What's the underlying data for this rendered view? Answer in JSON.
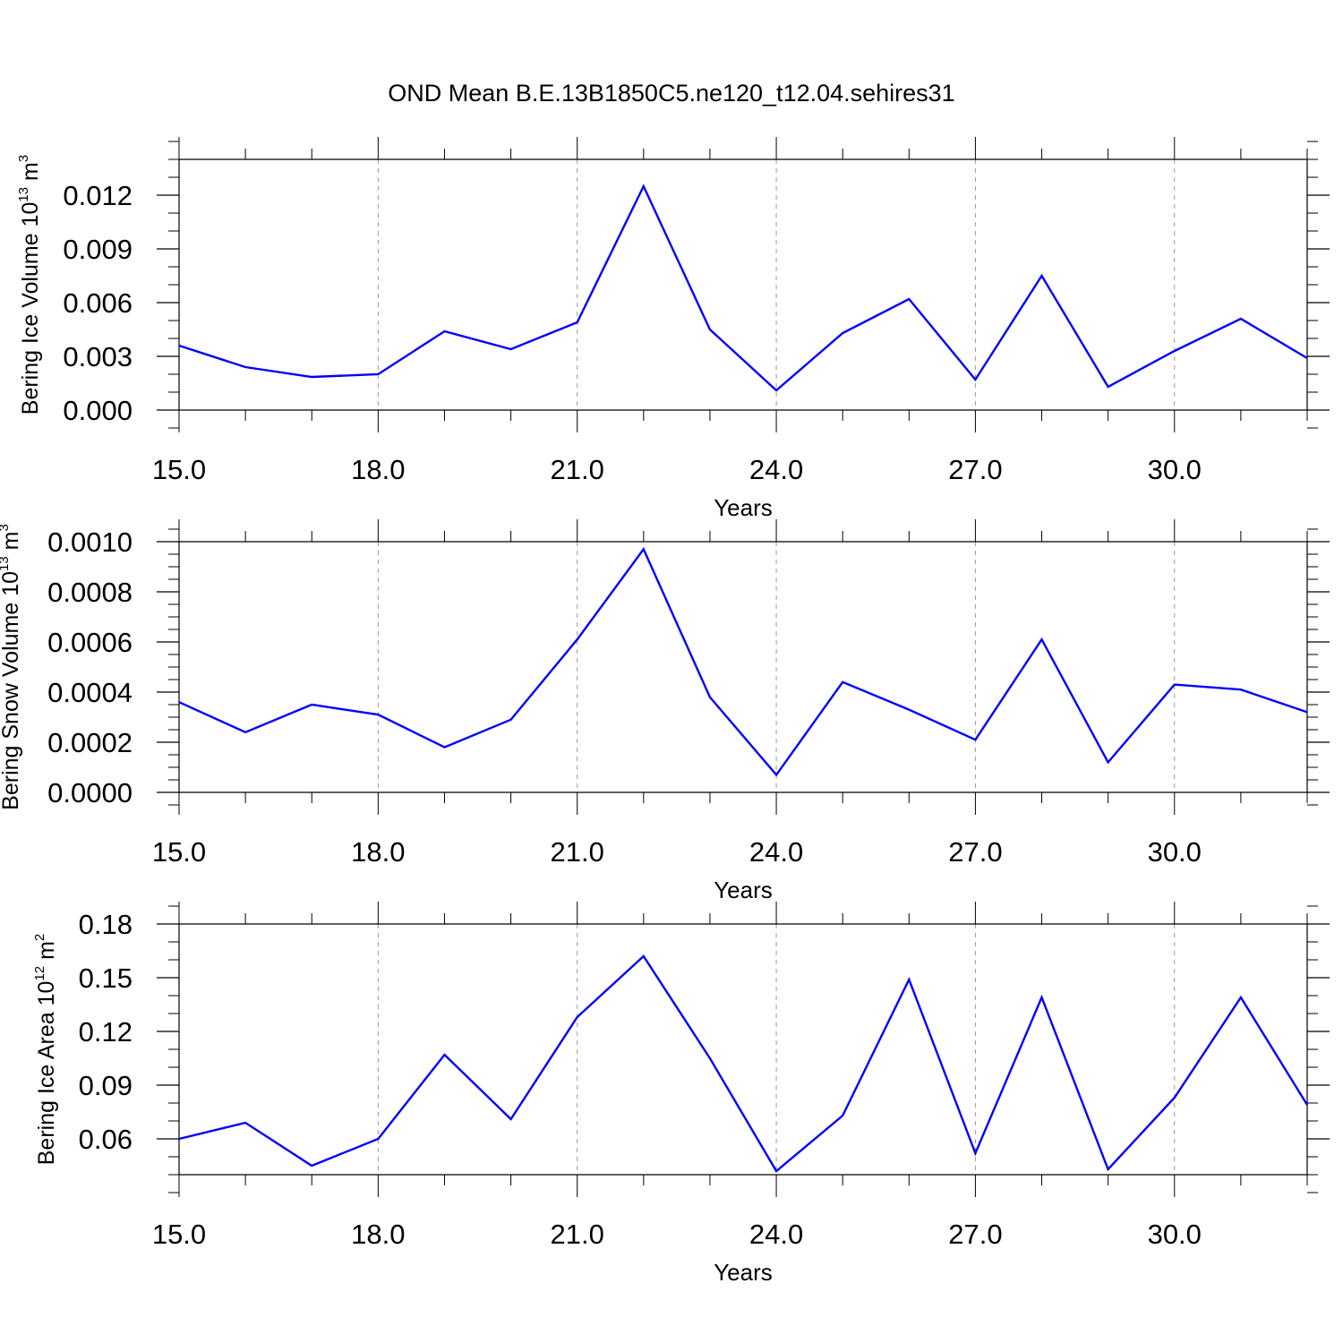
{
  "title": "OND Mean B.E.13B1850C5.ne120_t12.04.sehires31",
  "chart_data": [
    {
      "type": "line",
      "ylabel": {
        "text": "Bering Ice Volume 10",
        "exp1": "13",
        "unit": " m",
        "exp2": "3"
      },
      "xlabel": "Years",
      "xlim": [
        15,
        32
      ],
      "ylim": [
        0,
        0.014
      ],
      "x_ticks": [
        15,
        18,
        21,
        24,
        27,
        30
      ],
      "x_tick_labels": [
        "15.0",
        "18.0",
        "21.0",
        "24.0",
        "27.0",
        "30.0"
      ],
      "y_ticks": [
        0.0,
        0.003,
        0.006,
        0.009,
        0.012
      ],
      "y_tick_labels": [
        "0.000",
        "0.003",
        "0.006",
        "0.009",
        "0.012"
      ],
      "y_minor_step": 0.001,
      "x": [
        15,
        16,
        17,
        18,
        19,
        20,
        21,
        22,
        23,
        24,
        25,
        26,
        27,
        28,
        29,
        30,
        31,
        32
      ],
      "values": [
        0.0036,
        0.0024,
        0.00185,
        0.002,
        0.0044,
        0.0034,
        0.0049,
        0.0125,
        0.0045,
        0.0011,
        0.0043,
        0.0062,
        0.0017,
        0.0075,
        0.0013,
        0.0033,
        0.0051,
        0.0029
      ],
      "line_color": "#0000ff",
      "grid": "vertical dashed at major x ticks"
    },
    {
      "type": "line",
      "ylabel": {
        "text": "Bering Snow Volume 10",
        "exp1": "13",
        "unit": " m",
        "exp2": "3"
      },
      "xlabel": "Years",
      "xlim": [
        15,
        32
      ],
      "ylim": [
        0,
        0.001
      ],
      "x_ticks": [
        15,
        18,
        21,
        24,
        27,
        30
      ],
      "x_tick_labels": [
        "15.0",
        "18.0",
        "21.0",
        "24.0",
        "27.0",
        "30.0"
      ],
      "y_ticks": [
        0.0,
        0.0002,
        0.0004,
        0.0006,
        0.0008,
        0.001
      ],
      "y_tick_labels": [
        "0.0000",
        "0.0002",
        "0.0004",
        "0.0006",
        "0.0008",
        "0.0010"
      ],
      "y_minor_step": 5e-05,
      "x": [
        15,
        16,
        17,
        18,
        19,
        20,
        21,
        22,
        23,
        24,
        25,
        26,
        27,
        28,
        29,
        30,
        31,
        32
      ],
      "values": [
        0.00036,
        0.00024,
        0.00035,
        0.00031,
        0.00018,
        0.00029,
        0.00061,
        0.00097,
        0.00038,
        7e-05,
        0.00044,
        0.00033,
        0.00021,
        0.00061,
        0.00012,
        0.00043,
        0.00041,
        0.00032
      ],
      "line_color": "#0000ff",
      "grid": "vertical dashed at major x ticks"
    },
    {
      "type": "line",
      "ylabel": {
        "text": "Bering Ice Area 10",
        "exp1": "12",
        "unit": " m",
        "exp2": "2"
      },
      "xlabel": "Years",
      "xlim": [
        15,
        32
      ],
      "ylim": [
        0.04,
        0.18
      ],
      "x_ticks": [
        15,
        18,
        21,
        24,
        27,
        30
      ],
      "x_tick_labels": [
        "15.0",
        "18.0",
        "21.0",
        "24.0",
        "27.0",
        "30.0"
      ],
      "y_ticks": [
        0.06,
        0.09,
        0.12,
        0.15,
        0.18
      ],
      "y_tick_labels": [
        "0.06",
        "0.09",
        "0.12",
        "0.15",
        "0.18"
      ],
      "y_minor_step": 0.01,
      "x": [
        15,
        16,
        17,
        18,
        19,
        20,
        21,
        22,
        23,
        24,
        25,
        26,
        27,
        28,
        29,
        30,
        31,
        32
      ],
      "values": [
        0.06,
        0.069,
        0.045,
        0.06,
        0.107,
        0.071,
        0.128,
        0.162,
        0.105,
        0.042,
        0.073,
        0.149,
        0.052,
        0.139,
        0.043,
        0.083,
        0.139,
        0.079
      ],
      "line_color": "#0000ff",
      "grid": "vertical dashed at major x ticks"
    }
  ]
}
